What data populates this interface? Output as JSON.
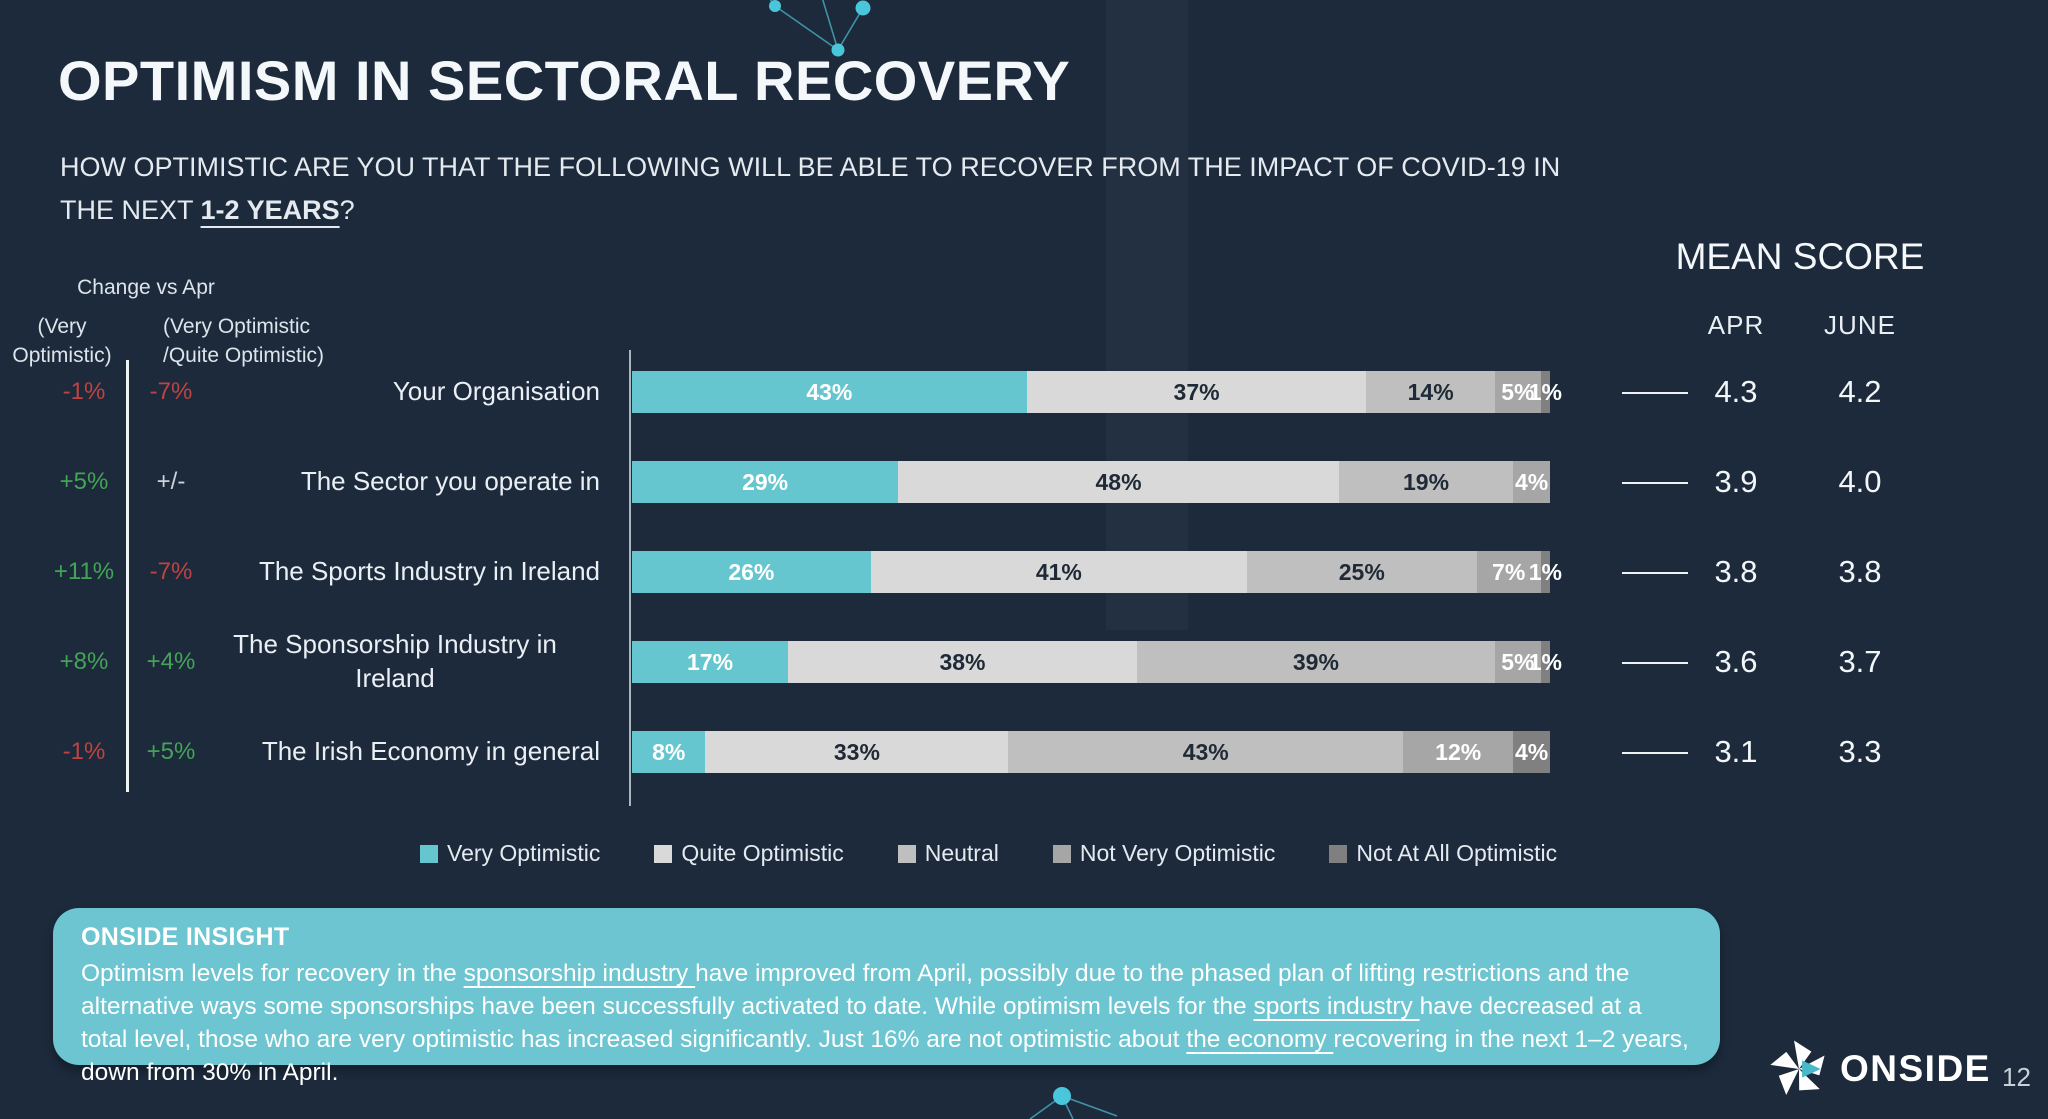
{
  "slide": {
    "title": "OPTIMISM IN SECTORAL RECOVERY",
    "subtitle": {
      "prefix": "HOW OPTIMISTIC ARE YOU THAT THE FOLLOWING WILL BE ABLE TO RECOVER FROM THE IMPACT OF COVID-19 IN THE NEXT ",
      "underline": "1-2 YEARS",
      "suffix": "?"
    }
  },
  "change_header": {
    "title": "Change vs Apr",
    "col1": "(Very Optimistic)",
    "col2": "(Very Optimistic /Quite Optimistic)"
  },
  "mean_header": {
    "title": "MEAN SCORE",
    "apr": "APR",
    "june": "JUNE"
  },
  "legend": [
    {
      "label": "Very Optimistic",
      "color": "#65c6cf"
    },
    {
      "label": "Quite Optimistic",
      "color": "#d9d9d9"
    },
    {
      "label": "Neutral",
      "color": "#bfbfbf"
    },
    {
      "label": "Not Very Optimistic",
      "color": "#a6a6a6"
    },
    {
      "label": "Not At All Optimistic",
      "color": "#808080"
    }
  ],
  "colors": {
    "background": "#1c2a3c",
    "series": [
      "#65c6cf",
      "#d9d9d9",
      "#bfbfbf",
      "#a6a6a6",
      "#808080"
    ],
    "series_label_colors": [
      "#ffffff",
      "#1f2a36",
      "#1f2a36",
      "#ffffff",
      "#ffffff"
    ],
    "positive": "#43a456",
    "negative": "#bf4340",
    "neutral_change": "#ccd3d9",
    "insight_bg": "#6cc5d0"
  },
  "icons": {
    "brand_logo": "onside-pinwheel-icon",
    "decoration_top": "network-nodes-icon",
    "decoration_bottom": "network-nodes-icon"
  },
  "chart_data": {
    "type": "bar",
    "stacked": true,
    "orientation": "horizontal",
    "unit": "%",
    "x_range": [
      0,
      100
    ],
    "grid": false,
    "legend_position": "bottom",
    "categories": [
      "Your Organisation",
      "The Sector you operate in",
      "The Sports Industry in Ireland",
      "The Sponsorship Industry in Ireland",
      "The Irish Economy in general"
    ],
    "series": [
      {
        "name": "Very Optimistic",
        "values": [
          43,
          29,
          26,
          17,
          8
        ]
      },
      {
        "name": "Quite Optimistic",
        "values": [
          37,
          48,
          41,
          38,
          33
        ]
      },
      {
        "name": "Neutral",
        "values": [
          14,
          19,
          25,
          39,
          43
        ]
      },
      {
        "name": "Not Very Optimistic",
        "values": [
          5,
          4,
          7,
          5,
          12
        ]
      },
      {
        "name": "Not At All Optimistic",
        "values": [
          1,
          0,
          1,
          1,
          4
        ]
      }
    ],
    "change_vs_apr": {
      "very_optimistic": [
        {
          "text": "-1%",
          "tone": "neg"
        },
        {
          "text": "+5%",
          "tone": "pos"
        },
        {
          "text": "+11%",
          "tone": "pos"
        },
        {
          "text": "+8%",
          "tone": "pos"
        },
        {
          "text": "-1%",
          "tone": "neg"
        }
      ],
      "very_or_quite_optimistic": [
        {
          "text": "-7%",
          "tone": "neg"
        },
        {
          "text": "+/-",
          "tone": "neutral"
        },
        {
          "text": "-7%",
          "tone": "neg"
        },
        {
          "text": "+4%",
          "tone": "pos"
        },
        {
          "text": "+5%",
          "tone": "pos"
        }
      ]
    },
    "mean_scores": {
      "apr": [
        "4.3",
        "3.9",
        "3.8",
        "3.6",
        "3.1"
      ],
      "june": [
        "4.2",
        "4.0",
        "3.8",
        "3.7",
        "3.3"
      ]
    }
  },
  "insight": {
    "title": "ONSIDE INSIGHT",
    "segments": [
      {
        "text": "Optimism levels for recovery in the "
      },
      {
        "text": "sponsorship industry ",
        "underline": true
      },
      {
        "text": "have improved from April, possibly due to the phased plan of lifting restrictions and the alternative ways some sponsorships have been successfully activated to date.  While optimism levels for the "
      },
      {
        "text": "sports industry ",
        "underline": true
      },
      {
        "text": "have decreased at a total level, those who are very optimistic has increased significantly.  Just 16% are not optimistic about "
      },
      {
        "text": "the economy ",
        "underline": true
      },
      {
        "text": "recovering in the next 1–2 years, down from 30% in April."
      }
    ]
  },
  "footer": {
    "brand": "ONSIDE",
    "page_number": "12"
  }
}
